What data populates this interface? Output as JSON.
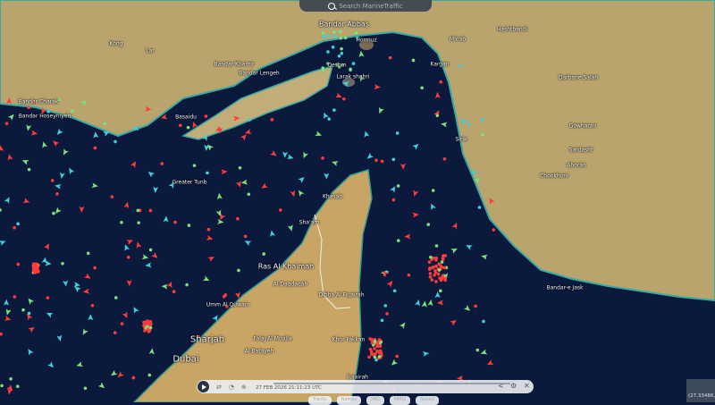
{
  "search": {
    "placeholder": "Search MarineTraffic",
    "icon": "search-icon"
  },
  "player": {
    "timestamp": "27 FEB 2026 21:11:23 UTC",
    "icons": [
      "play-icon",
      "loop-icon",
      "speed-icon",
      "target-icon",
      "share-icon",
      "gear-icon",
      "close-icon"
    ]
  },
  "chips": [
    "Tracks",
    "Names",
    "IMO",
    "MMSI",
    "Speed"
  ],
  "coords": "(27.33486,",
  "colors": {
    "sea": "#0b1a3c",
    "land": "#b9a46e",
    "ship_tanker": "#ff3b3b",
    "ship_cargo": "#7ce27a",
    "ship_other": "#3fd0e0"
  },
  "places": {
    "bandar_abbas": "Bandar Abbas",
    "hormuz": "Hormuz",
    "qeshm": "Qeshm",
    "larak": "Larak shahri",
    "bandar_lengeh": "Bandar Lengeh",
    "bandar_khamir": "Bandar Khamir",
    "bandar_charak": "Bandar Charak",
    "bandar_hoseynyeh": "Bandar Hoseyniyeh",
    "basaidu": "Basaidu",
    "greater_tunb": "Greater Tunb",
    "khasab": "Khasab",
    "shaam": "Sha'am",
    "ras_al_khaimah": "Ras Al Khaimah",
    "umm_al_quwain": "Umm Al Quwain",
    "al_daqdaqah": "Al Daqdaqah",
    "dibba": "Dibba Al Fujairah",
    "sharjah": "Sharjah",
    "dubai": "Dubai",
    "falaj": "Falaj Al Mualla",
    "fujairah": "Fujairah",
    "khor_fakkan": "Khor Fakkan",
    "al_batayeh": "Al Batayeh",
    "hashtbandi": "Hashtbandi",
    "darbane": "Darbane Salah",
    "gowharan": "Gowharan",
    "sardasht": "Sardasht",
    "ahoran": "Ahoran",
    "chookhoni": "Chookhoni",
    "kargan": "Kargan",
    "minab": "Minab",
    "sirik": "Sirik",
    "bandar_jask": "Bandar-e Jask",
    "kong": "Kong",
    "lar": "Lar"
  }
}
